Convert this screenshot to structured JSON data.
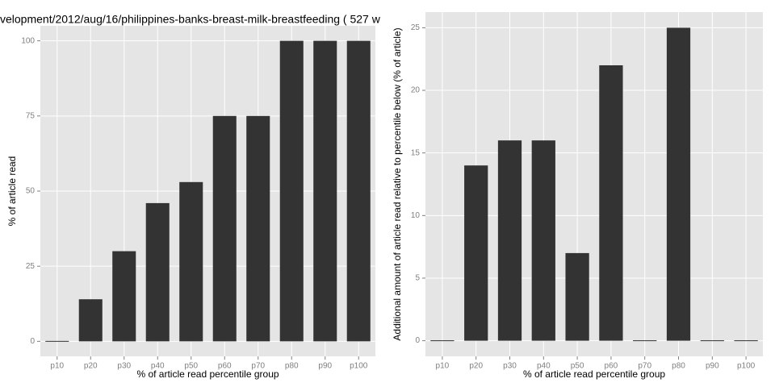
{
  "chart_data": [
    {
      "type": "bar",
      "title": "velopment/2012/aug/16/philippines-banks-breast-milk-breastfeeding ( 527 w",
      "x_label": "% of article read percentile group",
      "y_label": "% of article read",
      "categories": [
        "p10",
        "p20",
        "p30",
        "p40",
        "p50",
        "p60",
        "p70",
        "p80",
        "p90",
        "p100"
      ],
      "values": [
        0,
        14,
        30,
        46,
        53,
        75,
        75,
        100,
        100,
        100
      ],
      "color": "#333333",
      "ylim": [
        -5,
        105
      ],
      "yticks": [
        0,
        25,
        50,
        75,
        100
      ],
      "grid": true
    },
    {
      "type": "bar",
      "x_label": "% of article read percentile group",
      "y_label": "Additional amount of article read relative to percentile below (% of article)",
      "categories": [
        "p10",
        "p20",
        "p30",
        "p40",
        "p50",
        "p60",
        "p70",
        "p80",
        "p90",
        "p100"
      ],
      "values": [
        0,
        14,
        16,
        16,
        7,
        22,
        0,
        25,
        0,
        0
      ],
      "color": "#333333",
      "ylim": [
        -1.25,
        26.25
      ],
      "yticks": [
        0,
        5,
        10,
        15,
        20,
        25
      ],
      "grid": true
    }
  ]
}
